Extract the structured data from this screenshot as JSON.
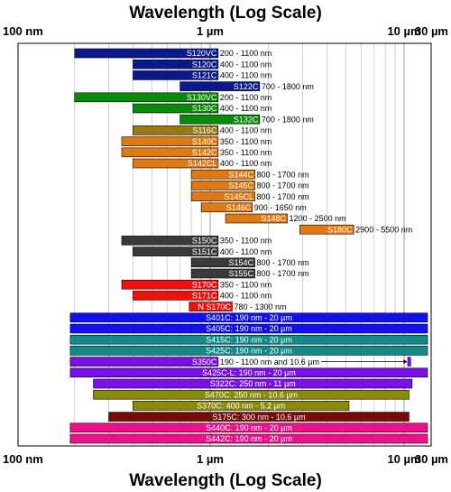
{
  "chart_data": {
    "type": "bar",
    "orientation": "horizontal",
    "title_top": "Wavelength (Log Scale)",
    "title_bottom": "Wavelength (Log Scale)",
    "x_scale": "log",
    "x_unit": "nm",
    "xlim": [
      100,
      30000
    ],
    "grid": true,
    "x_ticks": [
      {
        "value": 100,
        "label": "100 nm"
      },
      {
        "value": 1000,
        "label": "1 µm"
      },
      {
        "value": 10000,
        "label": "10 µm"
      },
      {
        "value": 30000,
        "label": "30 µm"
      }
    ],
    "bars": [
      {
        "name": "S120VC",
        "range": "200 - 1100 nm",
        "min": 200,
        "max": 1100,
        "color": "#0a1a8c",
        "label_inside": false
      },
      {
        "name": "S120C",
        "range": "400 - 1100 nm",
        "min": 400,
        "max": 1100,
        "color": "#0a1a8c",
        "label_inside": false
      },
      {
        "name": "S121C",
        "range": "400 - 1100 nm",
        "min": 400,
        "max": 1100,
        "color": "#0a1a8c",
        "label_inside": false
      },
      {
        "name": "S122C",
        "range": "700 - 1800 nm",
        "min": 700,
        "max": 1800,
        "color": "#0a1a8c",
        "label_inside": false
      },
      {
        "name": "S130VC",
        "range": "200 - 1100 nm",
        "min": 200,
        "max": 1100,
        "color": "#0a8a0a",
        "label_inside": false
      },
      {
        "name": "S130C",
        "range": "400 - 1100 nm",
        "min": 400,
        "max": 1100,
        "color": "#0a8a0a",
        "label_inside": false
      },
      {
        "name": "S132C",
        "range": "700 - 1800 nm",
        "min": 700,
        "max": 1800,
        "color": "#0a8a0a",
        "label_inside": false
      },
      {
        "name": "S116C",
        "range": "400 - 1100 nm",
        "min": 400,
        "max": 1100,
        "color": "#9a7a10",
        "label_inside": false
      },
      {
        "name": "S140C",
        "range": "350 - 1100 nm",
        "min": 350,
        "max": 1100,
        "color": "#e07a10",
        "label_inside": false
      },
      {
        "name": "S142C",
        "range": "350 - 1100 nm",
        "min": 350,
        "max": 1100,
        "color": "#e07a10",
        "label_inside": false
      },
      {
        "name": "S142CL",
        "range": "400 - 1100 nm",
        "min": 400,
        "max": 1100,
        "color": "#e07a10",
        "label_inside": false
      },
      {
        "name": "S144C",
        "range": "800 - 1700 nm",
        "min": 800,
        "max": 1700,
        "color": "#e07a10",
        "label_inside": false
      },
      {
        "name": "S145C",
        "range": "800 - 1700 nm",
        "min": 800,
        "max": 1700,
        "color": "#e07a10",
        "label_inside": false
      },
      {
        "name": "S145CL",
        "range": "800 - 1700 nm",
        "min": 800,
        "max": 1700,
        "color": "#e07a10",
        "label_inside": false
      },
      {
        "name": "S146C",
        "range": "900 - 1650 nm",
        "min": 900,
        "max": 1650,
        "color": "#e07a10",
        "label_inside": false
      },
      {
        "name": "S148C",
        "range": "1200 - 2500 nm",
        "min": 1200,
        "max": 2500,
        "color": "#e07a10",
        "label_inside": false
      },
      {
        "name": "S180C",
        "range": "2900 - 5500 nm",
        "min": 2900,
        "max": 5500,
        "color": "#e07a10",
        "label_inside": false
      },
      {
        "name": "S150C",
        "range": "350 - 1100 nm",
        "min": 350,
        "max": 1100,
        "color": "#3a3a3a",
        "label_inside": false
      },
      {
        "name": "S151C",
        "range": "400 - 1100 nm",
        "min": 400,
        "max": 1100,
        "color": "#3a3a3a",
        "label_inside": false
      },
      {
        "name": "S154C",
        "range": "800 - 1700 nm",
        "min": 800,
        "max": 1700,
        "color": "#3a3a3a",
        "label_inside": false
      },
      {
        "name": "S155C",
        "range": "800 - 1700 nm",
        "min": 800,
        "max": 1700,
        "color": "#3a3a3a",
        "label_inside": false
      },
      {
        "name": "S170C",
        "range": "350 - 1100 nm",
        "min": 350,
        "max": 1100,
        "color": "#f01010",
        "label_inside": false
      },
      {
        "name": "S171C",
        "range": "400 - 1100 nm",
        "min": 400,
        "max": 1100,
        "color": "#f01010",
        "label_inside": false
      },
      {
        "name": "N S170C",
        "range": "780 - 1300 nm",
        "min": 780,
        "max": 1300,
        "color": "#f01010",
        "label_inside": false
      },
      {
        "name": "S401C: 190 nm - 20 µm",
        "range": "",
        "min": 190,
        "max": 20000,
        "color": "#1010f0",
        "label_inside": true
      },
      {
        "name": "S405C: 190 nm - 20 µm",
        "range": "",
        "min": 190,
        "max": 20000,
        "color": "#1010f0",
        "label_inside": true
      },
      {
        "name": "S415C: 190 nm - 20 µm",
        "range": "",
        "min": 190,
        "max": 20000,
        "color": "#108a8a",
        "label_inside": true
      },
      {
        "name": "S425C: 190 nm - 20 µm",
        "range": "",
        "min": 190,
        "max": 20000,
        "color": "#108a8a",
        "label_inside": true
      },
      {
        "name": "S350C",
        "range": "190 - 1100 nm and 10.6 µm",
        "min": 190,
        "max": 1100,
        "color": "#7a10e8",
        "label_inside": false,
        "extra_mark": 10600
      },
      {
        "name": "S425C-L: 190 nm - 20 µm",
        "range": "",
        "min": 190,
        "max": 20000,
        "color": "#7a10e8",
        "label_inside": true
      },
      {
        "name": "S322C: 250 nm - 11 µm",
        "range": "",
        "min": 250,
        "max": 11000,
        "color": "#7a10e8",
        "label_inside": true
      },
      {
        "name": "S470C: 250 nm - 10.6 µm",
        "range": "",
        "min": 250,
        "max": 10600,
        "color": "#8a8a0a",
        "label_inside": true
      },
      {
        "name": "S370C: 400 nm - 5.2 µm",
        "range": "",
        "min": 400,
        "max": 5200,
        "color": "#8a8a0a",
        "label_inside": true
      },
      {
        "name": "S175C: 300 nm - 10.6 µm",
        "range": "",
        "min": 300,
        "max": 10600,
        "color": "#7a0a0a",
        "label_inside": true
      },
      {
        "name": "S440C: 190 nm - 20 µm",
        "range": "",
        "min": 190,
        "max": 20000,
        "color": "#f0108a",
        "label_inside": true
      },
      {
        "name": "S442C: 190 nm - 20 µm",
        "range": "",
        "min": 190,
        "max": 20000,
        "color": "#f0108a",
        "label_inside": true
      }
    ]
  }
}
